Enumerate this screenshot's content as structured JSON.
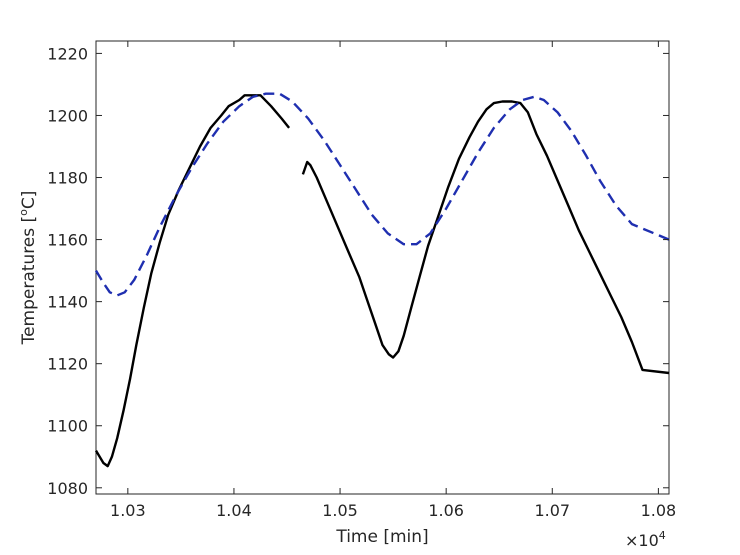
{
  "chart_data": {
    "type": "line",
    "title": "",
    "xlabel": "Time [min]",
    "ylabel_main": "Temperatures [",
    "ylabel_sup": "o",
    "ylabel_end": "C]",
    "x_exponent_prefix": "×10",
    "x_exponent": "4",
    "xlim": [
      1.027,
      1.081
    ],
    "ylim": [
      1078,
      1224
    ],
    "xticks": [
      1.03,
      1.04,
      1.05,
      1.06,
      1.07,
      1.08
    ],
    "xtick_labels": [
      "1.03",
      "1.04",
      "1.05",
      "1.06",
      "1.07",
      "1.08"
    ],
    "yticks": [
      1080,
      1100,
      1120,
      1140,
      1160,
      1180,
      1200,
      1220
    ],
    "ytick_labels": [
      "1080",
      "1100",
      "1120",
      "1140",
      "1160",
      "1180",
      "1200",
      "1220"
    ],
    "grid": false,
    "colors": {
      "solid": "#000000",
      "dashed": "#1f2fb0",
      "axis": "#262626"
    },
    "series": [
      {
        "style": "solid",
        "segments": [
          [
            [
              1.027,
              1092
            ],
            [
              1.0277,
              1088
            ],
            [
              1.0281,
              1087
            ],
            [
              1.0285,
              1090
            ],
            [
              1.029,
              1096
            ],
            [
              1.0296,
              1105
            ],
            [
              1.0302,
              1115
            ],
            [
              1.0308,
              1126
            ],
            [
              1.0315,
              1138
            ],
            [
              1.0322,
              1149
            ],
            [
              1.033,
              1159
            ],
            [
              1.0338,
              1168
            ],
            [
              1.0348,
              1176
            ],
            [
              1.0358,
              1183
            ],
            [
              1.0368,
              1190
            ],
            [
              1.0378,
              1196
            ],
            [
              1.0388,
              1200
            ],
            [
              1.0395,
              1203
            ],
            [
              1.0405,
              1205
            ],
            [
              1.041,
              1206.5
            ],
            [
              1.0418,
              1206.5
            ],
            [
              1.0425,
              1206.5
            ],
            [
              1.0435,
              1203
            ],
            [
              1.0445,
              1199
            ],
            [
              1.0452,
              1196
            ]
          ],
          [
            [
              1.0465,
              1181
            ],
            [
              1.0469,
              1185
            ],
            [
              1.0472,
              1184
            ],
            [
              1.0478,
              1180
            ],
            [
              1.0488,
              1172
            ],
            [
              1.0498,
              1164
            ],
            [
              1.0508,
              1156
            ],
            [
              1.0518,
              1148
            ],
            [
              1.0525,
              1141
            ],
            [
              1.0533,
              1133
            ],
            [
              1.054,
              1126
            ],
            [
              1.0546,
              1123
            ],
            [
              1.055,
              1122
            ],
            [
              1.0555,
              1124
            ],
            [
              1.056,
              1129
            ],
            [
              1.0567,
              1138
            ],
            [
              1.0575,
              1148
            ],
            [
              1.0583,
              1158
            ],
            [
              1.0592,
              1167
            ],
            [
              1.0602,
              1177
            ],
            [
              1.0612,
              1186
            ],
            [
              1.0622,
              1193
            ],
            [
              1.063,
              1198
            ],
            [
              1.0638,
              1202
            ],
            [
              1.0645,
              1204
            ],
            [
              1.0653,
              1204.5
            ],
            [
              1.0662,
              1204.5
            ],
            [
              1.067,
              1204
            ],
            [
              1.0677,
              1201
            ],
            [
              1.0685,
              1194
            ],
            [
              1.0695,
              1187
            ],
            [
              1.0705,
              1179
            ],
            [
              1.0715,
              1171
            ],
            [
              1.0725,
              1163
            ],
            [
              1.0735,
              1156
            ],
            [
              1.0745,
              1149
            ],
            [
              1.0755,
              1142
            ],
            [
              1.0765,
              1135
            ],
            [
              1.0775,
              1127
            ],
            [
              1.0785,
              1118
            ],
            [
              1.081,
              1117
            ]
          ]
        ]
      },
      {
        "style": "dashed",
        "segments": [
          [
            [
              1.027,
              1150
            ],
            [
              1.0277,
              1146
            ],
            [
              1.0283,
              1143
            ],
            [
              1.029,
              1142
            ],
            [
              1.0297,
              1143
            ],
            [
              1.0306,
              1147
            ],
            [
              1.0318,
              1155
            ],
            [
              1.033,
              1164
            ],
            [
              1.0345,
              1174
            ],
            [
              1.036,
              1183
            ],
            [
              1.0375,
              1191
            ],
            [
              1.039,
              1198
            ],
            [
              1.0405,
              1203
            ],
            [
              1.0418,
              1206
            ],
            [
              1.043,
              1207
            ],
            [
              1.0443,
              1207
            ],
            [
              1.0455,
              1204.5
            ],
            [
              1.047,
              1199
            ],
            [
              1.0485,
              1192
            ],
            [
              1.05,
              1184
            ],
            [
              1.0515,
              1176
            ],
            [
              1.053,
              1168
            ],
            [
              1.0545,
              1162
            ],
            [
              1.056,
              1158.5
            ],
            [
              1.0572,
              1158.5
            ],
            [
              1.0585,
              1162
            ],
            [
              1.06,
              1170
            ],
            [
              1.0615,
              1179
            ],
            [
              1.063,
              1188
            ],
            [
              1.0645,
              1196
            ],
            [
              1.066,
              1202
            ],
            [
              1.0672,
              1205
            ],
            [
              1.0683,
              1206
            ],
            [
              1.0692,
              1205
            ],
            [
              1.0705,
              1201
            ],
            [
              1.0718,
              1195
            ],
            [
              1.0732,
              1187
            ],
            [
              1.0745,
              1179
            ],
            [
              1.076,
              1171
            ],
            [
              1.0775,
              1165
            ],
            [
              1.081,
              1160
            ]
          ]
        ]
      }
    ]
  }
}
